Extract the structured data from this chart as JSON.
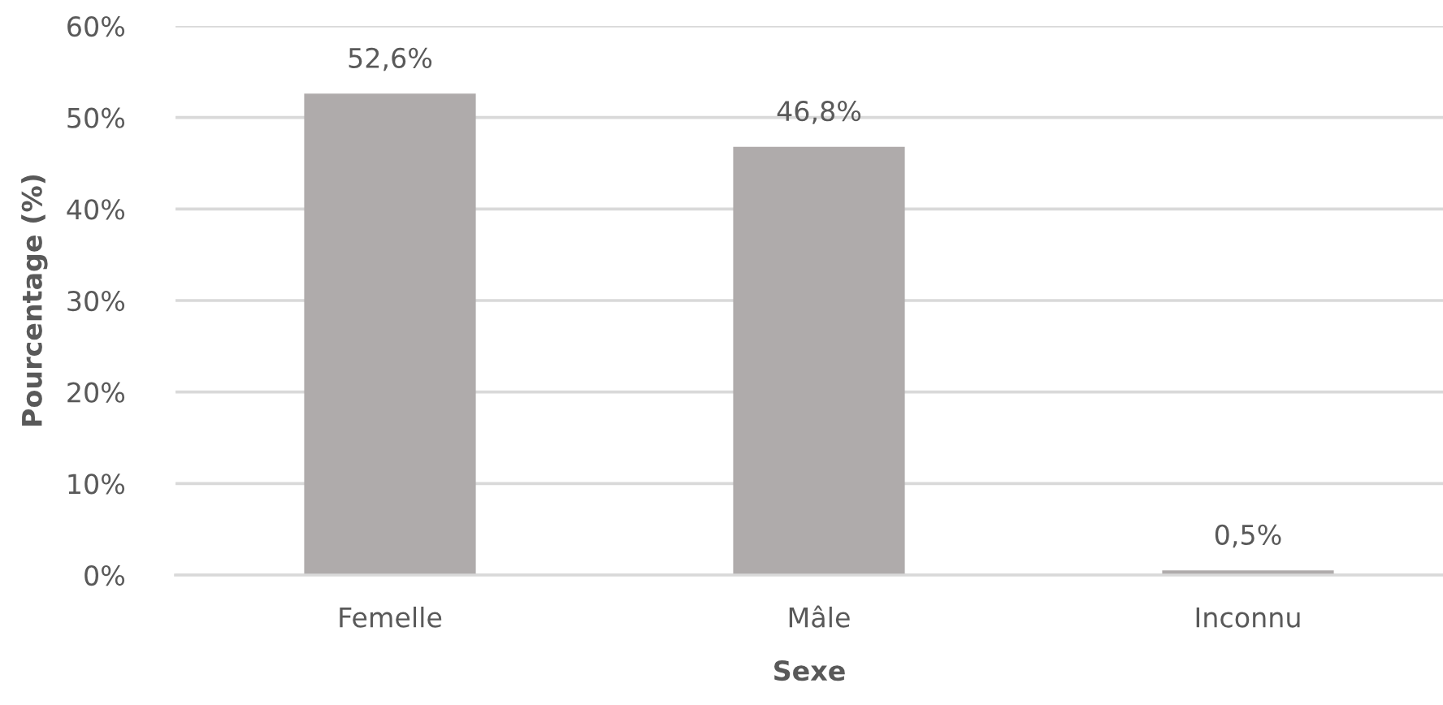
{
  "chart_data": {
    "type": "bar",
    "xlabel": "Sexe",
    "ylabel": "Pourcentage (%)",
    "categories": [
      "Femelle",
      "Mâle",
      "Inconnu"
    ],
    "values": [
      52.6,
      46.8,
      0.5
    ],
    "color": "#afabab",
    "value_labels": [
      "52,6%",
      "46,8%",
      "0,5%"
    ],
    "ylim": [
      0,
      60
    ],
    "yticks": [
      {
        "value": 0,
        "label": "0%"
      },
      {
        "value": 10,
        "label": "10%"
      },
      {
        "value": 20,
        "label": "20%"
      },
      {
        "value": 30,
        "label": "30%"
      },
      {
        "value": 40,
        "label": "40%"
      },
      {
        "value": 50,
        "label": "50%"
      },
      {
        "value": 60,
        "label": "60%"
      }
    ],
    "grid": "y"
  }
}
